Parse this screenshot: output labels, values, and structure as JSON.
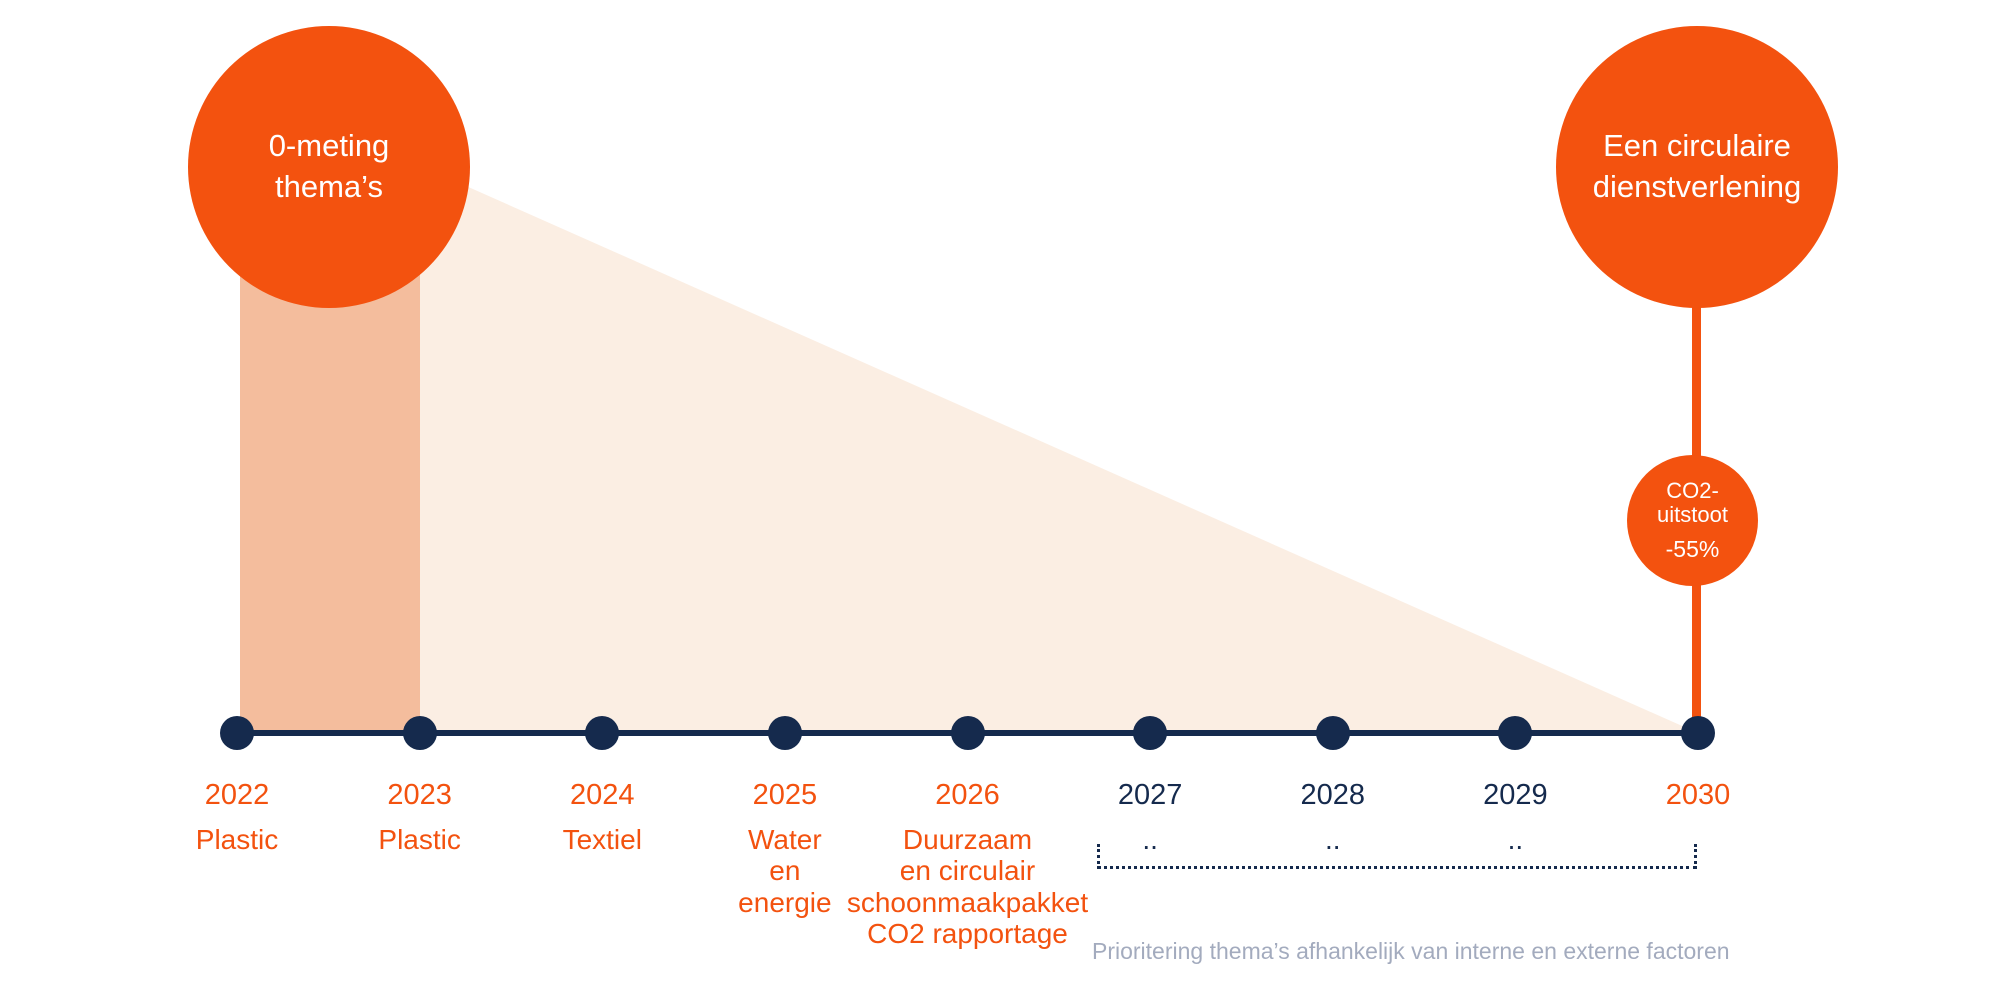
{
  "colors": {
    "orange": "#F3520F",
    "band": "#F4BD9D",
    "triangle": "#FBEEE3",
    "navy": "#152A4D",
    "gray": "#A3ABBE",
    "bubble_text": "#FFFFFF"
  },
  "start_bubble": {
    "label": "0-meting\nthema’s"
  },
  "end_bubble": {
    "label": "Een circulaire\ndienstverlening"
  },
  "co2_bubble": {
    "label": "CO2-\nuitstoot",
    "value": "-55%"
  },
  "timeline": {
    "items": [
      {
        "year": "2022",
        "label": "Plastic",
        "year_color": "orange",
        "label_color": "orange"
      },
      {
        "year": "2023",
        "label": "Plastic",
        "year_color": "orange",
        "label_color": "orange"
      },
      {
        "year": "2024",
        "label": "Textiel",
        "year_color": "orange",
        "label_color": "orange"
      },
      {
        "year": "2025",
        "label": "Water\nen\nenergie",
        "year_color": "orange",
        "label_color": "orange"
      },
      {
        "year": "2026",
        "label": "Duurzaam\nen circulair\nschoonmaakpakket\nCO2 rapportage",
        "year_color": "orange",
        "label_color": "orange"
      },
      {
        "year": "2027",
        "label": "..",
        "year_color": "navy",
        "label_color": "navy"
      },
      {
        "year": "2028",
        "label": "..",
        "year_color": "navy",
        "label_color": "navy"
      },
      {
        "year": "2029",
        "label": "..",
        "year_color": "navy",
        "label_color": "navy"
      },
      {
        "year": "2030",
        "label": "",
        "year_color": "orange",
        "label_color": "orange"
      }
    ]
  },
  "footnote": "Prioritering thema’s afhankelijk van interne en externe factoren"
}
